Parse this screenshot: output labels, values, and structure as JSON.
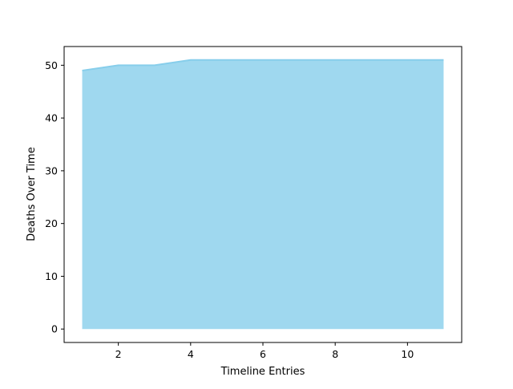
{
  "chart_data": {
    "type": "area",
    "title": "",
    "xlabel": "Timeline Entries",
    "ylabel": "Deaths Over Time",
    "x": [
      1,
      2,
      3,
      4,
      5,
      6,
      7,
      8,
      9,
      10,
      11
    ],
    "series": [
      {
        "values": [
          49,
          50,
          50,
          51,
          51,
          51,
          51,
          51,
          51,
          51,
          51
        ]
      }
    ],
    "xlim": [
      0.5,
      11.5
    ],
    "ylim": [
      -2.55,
      53.55
    ],
    "xticks": [
      2,
      4,
      6,
      8,
      10
    ],
    "yticks": [
      0,
      10,
      20,
      30,
      40,
      50
    ],
    "grid": false,
    "legend": "none",
    "colors": {
      "fill": "#87ceeb",
      "line": "#87ceeb"
    },
    "fill_opacity": 0.8
  }
}
